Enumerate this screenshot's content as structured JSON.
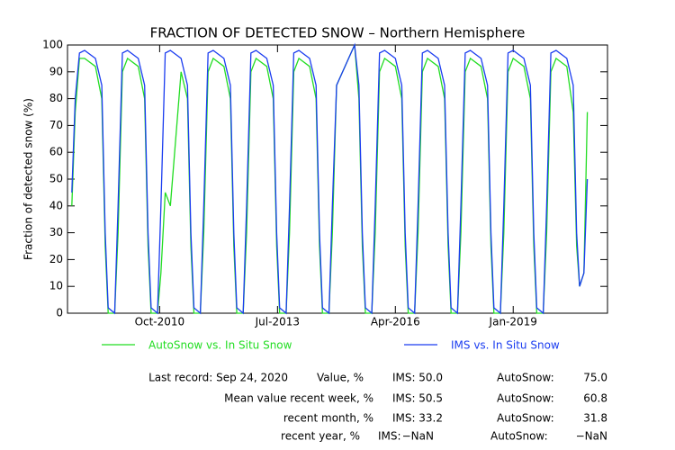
{
  "chart_data": {
    "type": "line",
    "title": "FRACTION OF DETECTED SNOW – Northern Hemisphere",
    "ylabel": "Fraction of detected snow (%)",
    "xlim": [
      2008.6,
      2021.2
    ],
    "xticks": [
      {
        "value": 2010.75,
        "label": "Oct-2010"
      },
      {
        "value": 2013.5,
        "label": "Jul-2013"
      },
      {
        "value": 2016.25,
        "label": "Apr-2016"
      },
      {
        "value": 2019.0,
        "label": "Jan-2019"
      }
    ],
    "ylim": [
      0,
      100
    ],
    "yticks": [
      0,
      10,
      20,
      30,
      40,
      50,
      60,
      70,
      80,
      90,
      100
    ],
    "x": [
      2008.7,
      2008.78,
      2008.88,
      2009,
      2009.25,
      2009.4,
      2009.48,
      2009.55,
      2009.7,
      2009.78,
      2009.88,
      2010,
      2010.25,
      2010.4,
      2010.48,
      2010.55,
      2010.7,
      2010.78,
      2010.88,
      2011,
      2011.25,
      2011.4,
      2011.48,
      2011.55,
      2011.7,
      2011.78,
      2011.88,
      2012,
      2012.25,
      2012.4,
      2012.48,
      2012.55,
      2012.7,
      2012.78,
      2012.88,
      2013,
      2013.25,
      2013.4,
      2013.48,
      2013.55,
      2013.7,
      2013.78,
      2013.88,
      2014,
      2014.25,
      2014.4,
      2014.48,
      2014.55,
      2014.7,
      2014.78,
      2014.88,
      2015.3,
      2015.4,
      2015.48,
      2015.55,
      2015.7,
      2015.78,
      2015.88,
      2016,
      2016.25,
      2016.4,
      2016.48,
      2016.55,
      2016.7,
      2016.78,
      2016.88,
      2017,
      2017.25,
      2017.4,
      2017.48,
      2017.55,
      2017.7,
      2017.78,
      2017.88,
      2018,
      2018.25,
      2018.4,
      2018.48,
      2018.55,
      2018.7,
      2018.78,
      2018.88,
      2019,
      2019.25,
      2019.4,
      2019.48,
      2019.55,
      2019.7,
      2019.78,
      2019.88,
      2020,
      2020.25,
      2020.4,
      2020.48,
      2020.55,
      2020.65,
      2020.73
    ],
    "series": [
      {
        "name": "AutoSnow vs. In Situ Snow",
        "color": "#22dd22",
        "values": [
          40,
          75,
          95,
          95,
          92,
          80,
          25,
          0,
          0,
          30,
          90,
          95,
          92,
          80,
          25,
          0,
          0,
          15,
          45,
          40,
          90,
          80,
          25,
          0,
          0,
          30,
          90,
          95,
          92,
          80,
          25,
          0,
          0,
          30,
          90,
          95,
          92,
          80,
          25,
          0,
          0,
          30,
          90,
          95,
          92,
          80,
          25,
          0,
          0,
          30,
          85,
          100,
          80,
          25,
          0,
          0,
          30,
          90,
          95,
          92,
          80,
          25,
          0,
          0,
          30,
          90,
          95,
          92,
          80,
          25,
          0,
          0,
          30,
          90,
          95,
          92,
          80,
          25,
          0,
          0,
          30,
          90,
          95,
          92,
          80,
          25,
          0,
          0,
          30,
          90,
          95,
          92,
          75,
          25,
          10,
          15,
          75
        ]
      },
      {
        "name": "IMS vs. In Situ Snow",
        "color": "#1a3cf0",
        "values": [
          45,
          80,
          97,
          98,
          95,
          85,
          30,
          2,
          0,
          40,
          97,
          98,
          95,
          85,
          30,
          2,
          0,
          40,
          97,
          98,
          95,
          85,
          30,
          2,
          0,
          40,
          97,
          98,
          95,
          85,
          30,
          2,
          0,
          40,
          97,
          98,
          95,
          85,
          30,
          2,
          0,
          40,
          97,
          98,
          95,
          85,
          30,
          2,
          0,
          40,
          85,
          100,
          85,
          30,
          2,
          0,
          40,
          97,
          98,
          95,
          85,
          30,
          2,
          0,
          40,
          97,
          98,
          95,
          85,
          30,
          2,
          0,
          40,
          97,
          98,
          95,
          85,
          30,
          2,
          0,
          40,
          97,
          98,
          95,
          85,
          30,
          2,
          0,
          40,
          97,
          98,
          95,
          85,
          30,
          10,
          15,
          50
        ]
      }
    ]
  },
  "stats": {
    "rows": [
      [
        "Last record: Sep 24, 2020",
        "Value, %",
        "IMS:",
        "50.0",
        "AutoSnow:",
        "75.0"
      ],
      [
        "Mean value recent week, %",
        "IMS:",
        "50.5",
        "AutoSnow:",
        "60.8"
      ],
      [
        "recent month, %",
        "IMS:",
        "33.2",
        "AutoSnow:",
        "31.8"
      ],
      [
        "recent year, %",
        "IMS:",
        "−NaN",
        "AutoSnow:",
        "−NaN"
      ]
    ]
  }
}
